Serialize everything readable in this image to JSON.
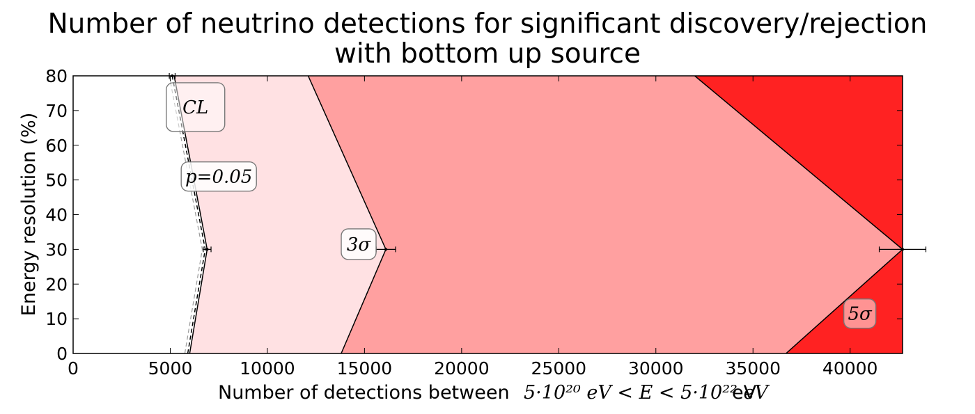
{
  "chart_data": {
    "type": "area",
    "title_line1": "Number of neutrino detections for significant discovery/rejection",
    "title_line2": "with bottom up source",
    "xlabel_prefix": "Number of detections between",
    "xlabel_math": "5·10²⁰ eV < E < 5·10²² eV",
    "xlabel_suffix": "eV",
    "ylabel": "Energy resolution (%)",
    "xlim": [
      0,
      42700
    ],
    "ylim": [
      0,
      80
    ],
    "xticks": [
      0,
      5000,
      10000,
      15000,
      20000,
      25000,
      30000,
      35000,
      40000
    ],
    "yticks": [
      0,
      10,
      20,
      30,
      40,
      50,
      60,
      70,
      80
    ],
    "grid": false,
    "colors": {
      "white_region": "#ffffff",
      "p005_region": "#ffe1e3",
      "three_sigma_region": "#ffa0a0",
      "five_sigma_region": "#ff2222"
    },
    "series": [
      {
        "name": "CL",
        "values": [
          [
            5900,
            0
          ],
          [
            6800,
            30
          ],
          [
            5100,
            80
          ]
        ],
        "style": "dashed"
      },
      {
        "name": "p=0.05",
        "values": [
          [
            6000,
            0
          ],
          [
            6900,
            30
          ],
          [
            5200,
            80
          ]
        ],
        "style": "solid"
      },
      {
        "name": "3σ",
        "values": [
          [
            13800,
            0
          ],
          [
            16100,
            30
          ],
          [
            12100,
            80
          ]
        ],
        "style": "solid"
      },
      {
        "name": "5σ",
        "values": [
          [
            36700,
            0
          ],
          [
            42700,
            30
          ],
          [
            32000,
            80
          ]
        ],
        "style": "solid"
      }
    ],
    "error_bars": [
      {
        "x": 6900,
        "y": 30,
        "xerr": 200
      },
      {
        "x": 16100,
        "y": 30,
        "xerr": 500
      },
      {
        "x": 42700,
        "y": 30,
        "xerr": 1200
      },
      {
        "x": 5100,
        "y": 80,
        "xerr": 150
      }
    ],
    "annotations": [
      {
        "text": "CL",
        "x": 6300,
        "y": 71
      },
      {
        "text": "p=0.05",
        "x": 7500,
        "y": 51
      },
      {
        "text": "3σ",
        "x": 14700,
        "y": 31.5
      },
      {
        "text": "5σ",
        "x": 40500,
        "y": 11.5
      }
    ]
  }
}
